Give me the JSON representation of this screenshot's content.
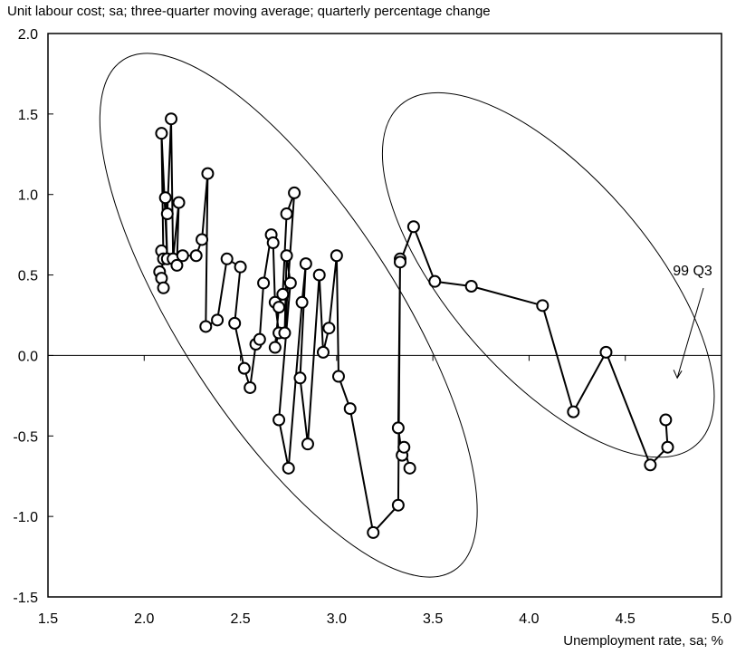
{
  "chart_data": {
    "type": "scatter",
    "title": "",
    "ylabel": "Unit labour cost; sa; three-quarter moving average; quarterly percentage change",
    "xlabel": "Unemployment rate, sa; %",
    "xlim": [
      1.5,
      5.0
    ],
    "ylim": [
      -1.5,
      2.0
    ],
    "xticks": [
      "1.5",
      "2.0",
      "2.5",
      "3.0",
      "3.5",
      "4.0",
      "4.5",
      "5.0"
    ],
    "yticks": [
      "2.0",
      "1.5",
      "1.0",
      "0.5",
      "0.0",
      "-0.5",
      "-1.0",
      "-1.5"
    ],
    "grid": false,
    "annotation": {
      "text": "99 Q3",
      "x": 4.77,
      "y": -0.14
    },
    "series": [
      {
        "points": [
          [
            2.08,
            0.52
          ],
          [
            2.09,
            0.48
          ],
          [
            2.1,
            0.42
          ],
          [
            2.09,
            0.65
          ],
          [
            2.1,
            0.6
          ],
          [
            2.09,
            1.38
          ],
          [
            2.12,
            0.6
          ],
          [
            2.11,
            0.98
          ],
          [
            2.12,
            0.88
          ],
          [
            2.14,
            1.47
          ],
          [
            2.15,
            0.6
          ],
          [
            2.18,
            0.95
          ],
          [
            2.17,
            0.56
          ],
          [
            2.2,
            0.62
          ],
          [
            2.27,
            0.62
          ],
          [
            2.3,
            0.72
          ],
          [
            2.33,
            1.13
          ],
          [
            2.32,
            0.18
          ],
          [
            2.38,
            0.22
          ],
          [
            2.43,
            0.6
          ],
          [
            2.5,
            0.55
          ],
          [
            2.47,
            0.2
          ],
          [
            2.52,
            -0.08
          ],
          [
            2.55,
            -0.2
          ],
          [
            2.58,
            0.07
          ],
          [
            2.6,
            0.1
          ],
          [
            2.62,
            0.45
          ],
          [
            2.66,
            0.75
          ],
          [
            2.67,
            0.7
          ],
          [
            2.68,
            0.33
          ],
          [
            2.7,
            0.14
          ],
          [
            2.68,
            0.05
          ],
          [
            2.7,
            0.3
          ],
          [
            2.72,
            0.38
          ],
          [
            2.74,
            0.88
          ],
          [
            2.78,
            1.01
          ],
          [
            2.73,
            0.14
          ],
          [
            2.74,
            0.62
          ],
          [
            2.76,
            0.45
          ],
          [
            2.7,
            -0.4
          ],
          [
            2.75,
            -0.7
          ],
          [
            2.82,
            0.33
          ],
          [
            2.84,
            0.57
          ],
          [
            2.81,
            -0.14
          ],
          [
            2.85,
            -0.55
          ],
          [
            2.91,
            0.5
          ],
          [
            2.93,
            0.02
          ],
          [
            2.96,
            0.17
          ],
          [
            3.0,
            0.62
          ],
          [
            3.01,
            -0.13
          ],
          [
            3.07,
            -0.33
          ],
          [
            3.19,
            -1.1
          ],
          [
            3.32,
            -0.93
          ],
          [
            3.33,
            0.6
          ],
          [
            3.32,
            -0.45
          ],
          [
            3.34,
            -0.62
          ],
          [
            3.35,
            -0.57
          ],
          [
            3.38,
            -0.7
          ]
        ]
      },
      {
        "points": [
          [
            3.33,
            0.58
          ],
          [
            3.4,
            0.8
          ],
          [
            3.51,
            0.46
          ],
          [
            3.7,
            0.43
          ],
          [
            4.07,
            0.31
          ],
          [
            4.23,
            -0.35
          ],
          [
            4.4,
            0.02
          ],
          [
            4.63,
            -0.68
          ],
          [
            4.72,
            -0.57
          ],
          [
            4.71,
            -0.4
          ]
        ]
      }
    ],
    "ellipses": [
      {
        "cx": 2.75,
        "cy": 0.25,
        "rx": 1.58,
        "ry": 0.56,
        "rotation_deg": 57
      },
      {
        "cx": 4.1,
        "cy": 0.5,
        "rx": 1.17,
        "ry": 0.52,
        "rotation_deg": 49
      }
    ]
  }
}
